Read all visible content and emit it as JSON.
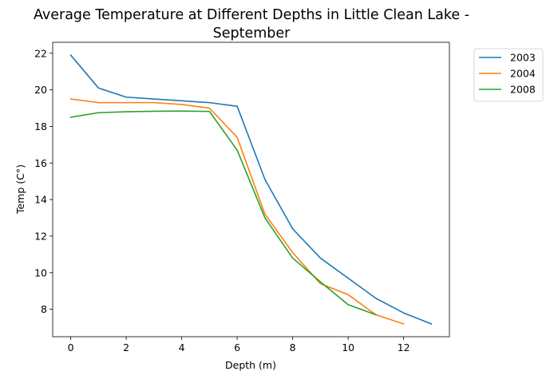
{
  "chart_data": {
    "type": "line",
    "title_line1": "Average Temperature at Different Depths in Little Clean Lake -",
    "title_line2": "September",
    "xlabel": "Depth (m)",
    "ylabel": "Temp (C°)",
    "xlim": [
      -0.65,
      13.65
    ],
    "ylim": [
      6.5,
      22.6
    ],
    "xticks": [
      0,
      2,
      4,
      6,
      8,
      10,
      12
    ],
    "yticks": [
      8,
      10,
      12,
      14,
      16,
      18,
      20,
      22
    ],
    "grid": false,
    "legend_position": "outside top-right",
    "series": [
      {
        "name": "2003",
        "color": "#1f77b4",
        "x": [
          0,
          1,
          2,
          3,
          4,
          5,
          6,
          7,
          8,
          9,
          10,
          11,
          12,
          13
        ],
        "y": [
          21.9,
          20.1,
          19.6,
          19.5,
          19.4,
          19.3,
          19.1,
          15.1,
          12.4,
          10.8,
          9.7,
          8.6,
          7.8,
          7.2
        ]
      },
      {
        "name": "2004",
        "color": "#ff7f0e",
        "x": [
          0,
          1,
          2,
          3,
          4,
          5,
          6,
          7,
          8,
          9,
          10,
          11,
          12
        ],
        "y": [
          19.5,
          19.3,
          19.3,
          19.3,
          19.2,
          19.0,
          17.4,
          13.2,
          11.1,
          9.4,
          8.8,
          7.7,
          7.2
        ]
      },
      {
        "name": "2008",
        "color": "#2ca02c",
        "x": [
          0,
          1,
          2,
          3,
          4,
          5,
          6,
          7,
          8,
          9,
          10,
          11
        ],
        "y": [
          18.5,
          18.75,
          18.8,
          18.83,
          18.84,
          18.82,
          16.7,
          13.0,
          10.8,
          9.5,
          8.25,
          7.7
        ]
      }
    ]
  }
}
